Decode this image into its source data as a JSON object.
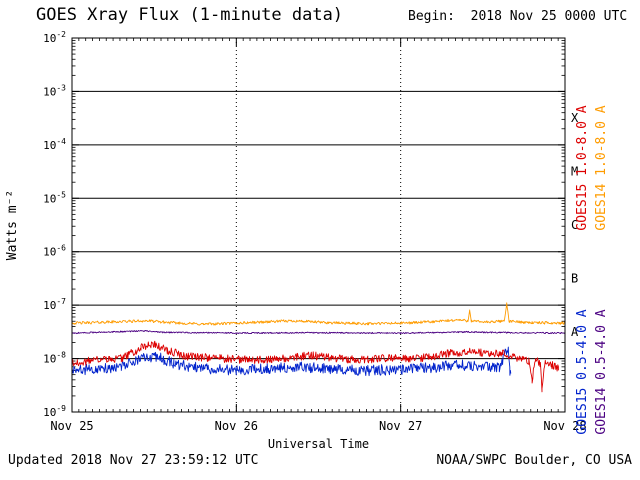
{
  "footer": {
    "updated": "Updated 2018 Nov 27 23:59:12 UTC",
    "credit": "NOAA/SWPC Boulder, CO USA"
  },
  "chart_data": {
    "type": "line",
    "title": "GOES Xray Flux (1-minute data)",
    "begin_label": "Begin:  2018 Nov 25 0000 UTC",
    "xlabel": "Universal Time",
    "ylabel": "Watts m⁻²",
    "x_ticks": [
      "Nov 25",
      "Nov 26",
      "Nov 27",
      "Nov 28"
    ],
    "x_range_days": [
      0,
      3
    ],
    "y_exponent_range": [
      -2,
      -9
    ],
    "y_tick_exponents": [
      -2,
      -3,
      -4,
      -5,
      -6,
      -7,
      -8,
      -9
    ],
    "grid": {
      "h_line_exponents": [
        -3,
        -4,
        -5,
        -6,
        -7,
        -8
      ],
      "v_dotted_days": [
        1,
        2
      ]
    },
    "flare_classes": [
      {
        "label": "X",
        "log_center": -3.5
      },
      {
        "label": "M",
        "log_center": -4.5
      },
      {
        "label": "C",
        "log_center": -5.5
      },
      {
        "label": "B",
        "log_center": -6.5
      },
      {
        "label": "A",
        "log_center": -7.5
      }
    ],
    "series": [
      {
        "id": "goes14-long",
        "name": "GOES14 1.0-8.0 A",
        "color": "#ff9c00",
        "noise": 0.025,
        "points": [
          [
            0,
            4.6e-08
          ],
          [
            0.2,
            4.8e-08
          ],
          [
            0.45,
            5.1e-08
          ],
          [
            0.6,
            4.7e-08
          ],
          [
            0.8,
            4.4e-08
          ],
          [
            1.0,
            4.6e-08
          ],
          [
            1.2,
            4.9e-08
          ],
          [
            1.35,
            5.1e-08
          ],
          [
            1.55,
            4.7e-08
          ],
          [
            1.8,
            4.5e-08
          ],
          [
            2.0,
            4.6e-08
          ],
          [
            2.2,
            4.9e-08
          ],
          [
            2.35,
            5.3e-08
          ],
          [
            2.41,
            5.1e-08
          ],
          [
            2.42,
            8.3e-08
          ],
          [
            2.43,
            5e-08
          ],
          [
            2.55,
            4.8e-08
          ],
          [
            2.63,
            5.1e-08
          ],
          [
            2.645,
            1.05e-07
          ],
          [
            2.66,
            5e-08
          ],
          [
            2.8,
            4.7e-08
          ],
          [
            3.0,
            4.6e-08
          ]
        ]
      },
      {
        "id": "goes15-short",
        "name": "GOES15 0.5-4.0 A",
        "color": "#0022cc",
        "noise": 0.1,
        "points": [
          [
            0,
            6e-09
          ],
          [
            0.15,
            6.5e-09
          ],
          [
            0.3,
            7e-09
          ],
          [
            0.45,
            1.05e-08
          ],
          [
            0.52,
            1.1e-08
          ],
          [
            0.62,
            8e-09
          ],
          [
            0.8,
            6.5e-09
          ],
          [
            1.0,
            6e-09
          ],
          [
            1.2,
            6.5e-09
          ],
          [
            1.4,
            7e-09
          ],
          [
            1.6,
            6.2e-09
          ],
          [
            1.8,
            6e-09
          ],
          [
            2.0,
            6.3e-09
          ],
          [
            2.2,
            6.8e-09
          ],
          [
            2.35,
            7.6e-09
          ],
          [
            2.5,
            7e-09
          ],
          [
            2.6,
            6.8e-09
          ],
          [
            2.655,
            1.7e-08
          ],
          [
            2.665,
            6e-09
          ],
          [
            2.67,
            5e-09
          ]
        ]
      },
      {
        "id": "goes15-long",
        "name": "GOES15 1.0-8.0 A",
        "color": "#dd0000",
        "noise": 0.075,
        "points": [
          [
            0,
            8e-09
          ],
          [
            0.1,
            9e-09
          ],
          [
            0.3,
            1e-08
          ],
          [
            0.42,
            1.6e-08
          ],
          [
            0.5,
            1.9e-08
          ],
          [
            0.58,
            1.4e-08
          ],
          [
            0.7,
            1.1e-08
          ],
          [
            0.9,
            1e-08
          ],
          [
            1.1,
            9.5e-09
          ],
          [
            1.3,
            1e-08
          ],
          [
            1.45,
            1.15e-08
          ],
          [
            1.6,
            1e-08
          ],
          [
            1.8,
            9.5e-09
          ],
          [
            1.95,
            1.05e-08
          ],
          [
            2.1,
            1e-08
          ],
          [
            2.3,
            1.25e-08
          ],
          [
            2.45,
            1.4e-08
          ],
          [
            2.55,
            1.2e-08
          ],
          [
            2.62,
            1.3e-08
          ],
          [
            2.7,
            1.05e-08
          ],
          [
            2.78,
            9e-09
          ],
          [
            2.8,
            4e-09
          ],
          [
            2.82,
            9.5e-09
          ],
          [
            2.85,
            8e-09
          ],
          [
            2.86,
            2.8e-09
          ],
          [
            2.88,
            8.5e-09
          ],
          [
            2.92,
            7.5e-09
          ],
          [
            2.96,
            6.5e-09
          ]
        ]
      },
      {
        "id": "goes14-short",
        "name": "GOES14 0.5-4.0 A",
        "color": "#4b0082",
        "noise": 0.012,
        "points": [
          [
            0,
            3e-08
          ],
          [
            0.45,
            3.3e-08
          ],
          [
            0.55,
            3.1e-08
          ],
          [
            1.0,
            3e-08
          ],
          [
            1.5,
            3.05e-08
          ],
          [
            2.0,
            3e-08
          ],
          [
            2.4,
            3.15e-08
          ],
          [
            2.65,
            3.05e-08
          ],
          [
            3.0,
            3e-08
          ]
        ]
      }
    ]
  }
}
